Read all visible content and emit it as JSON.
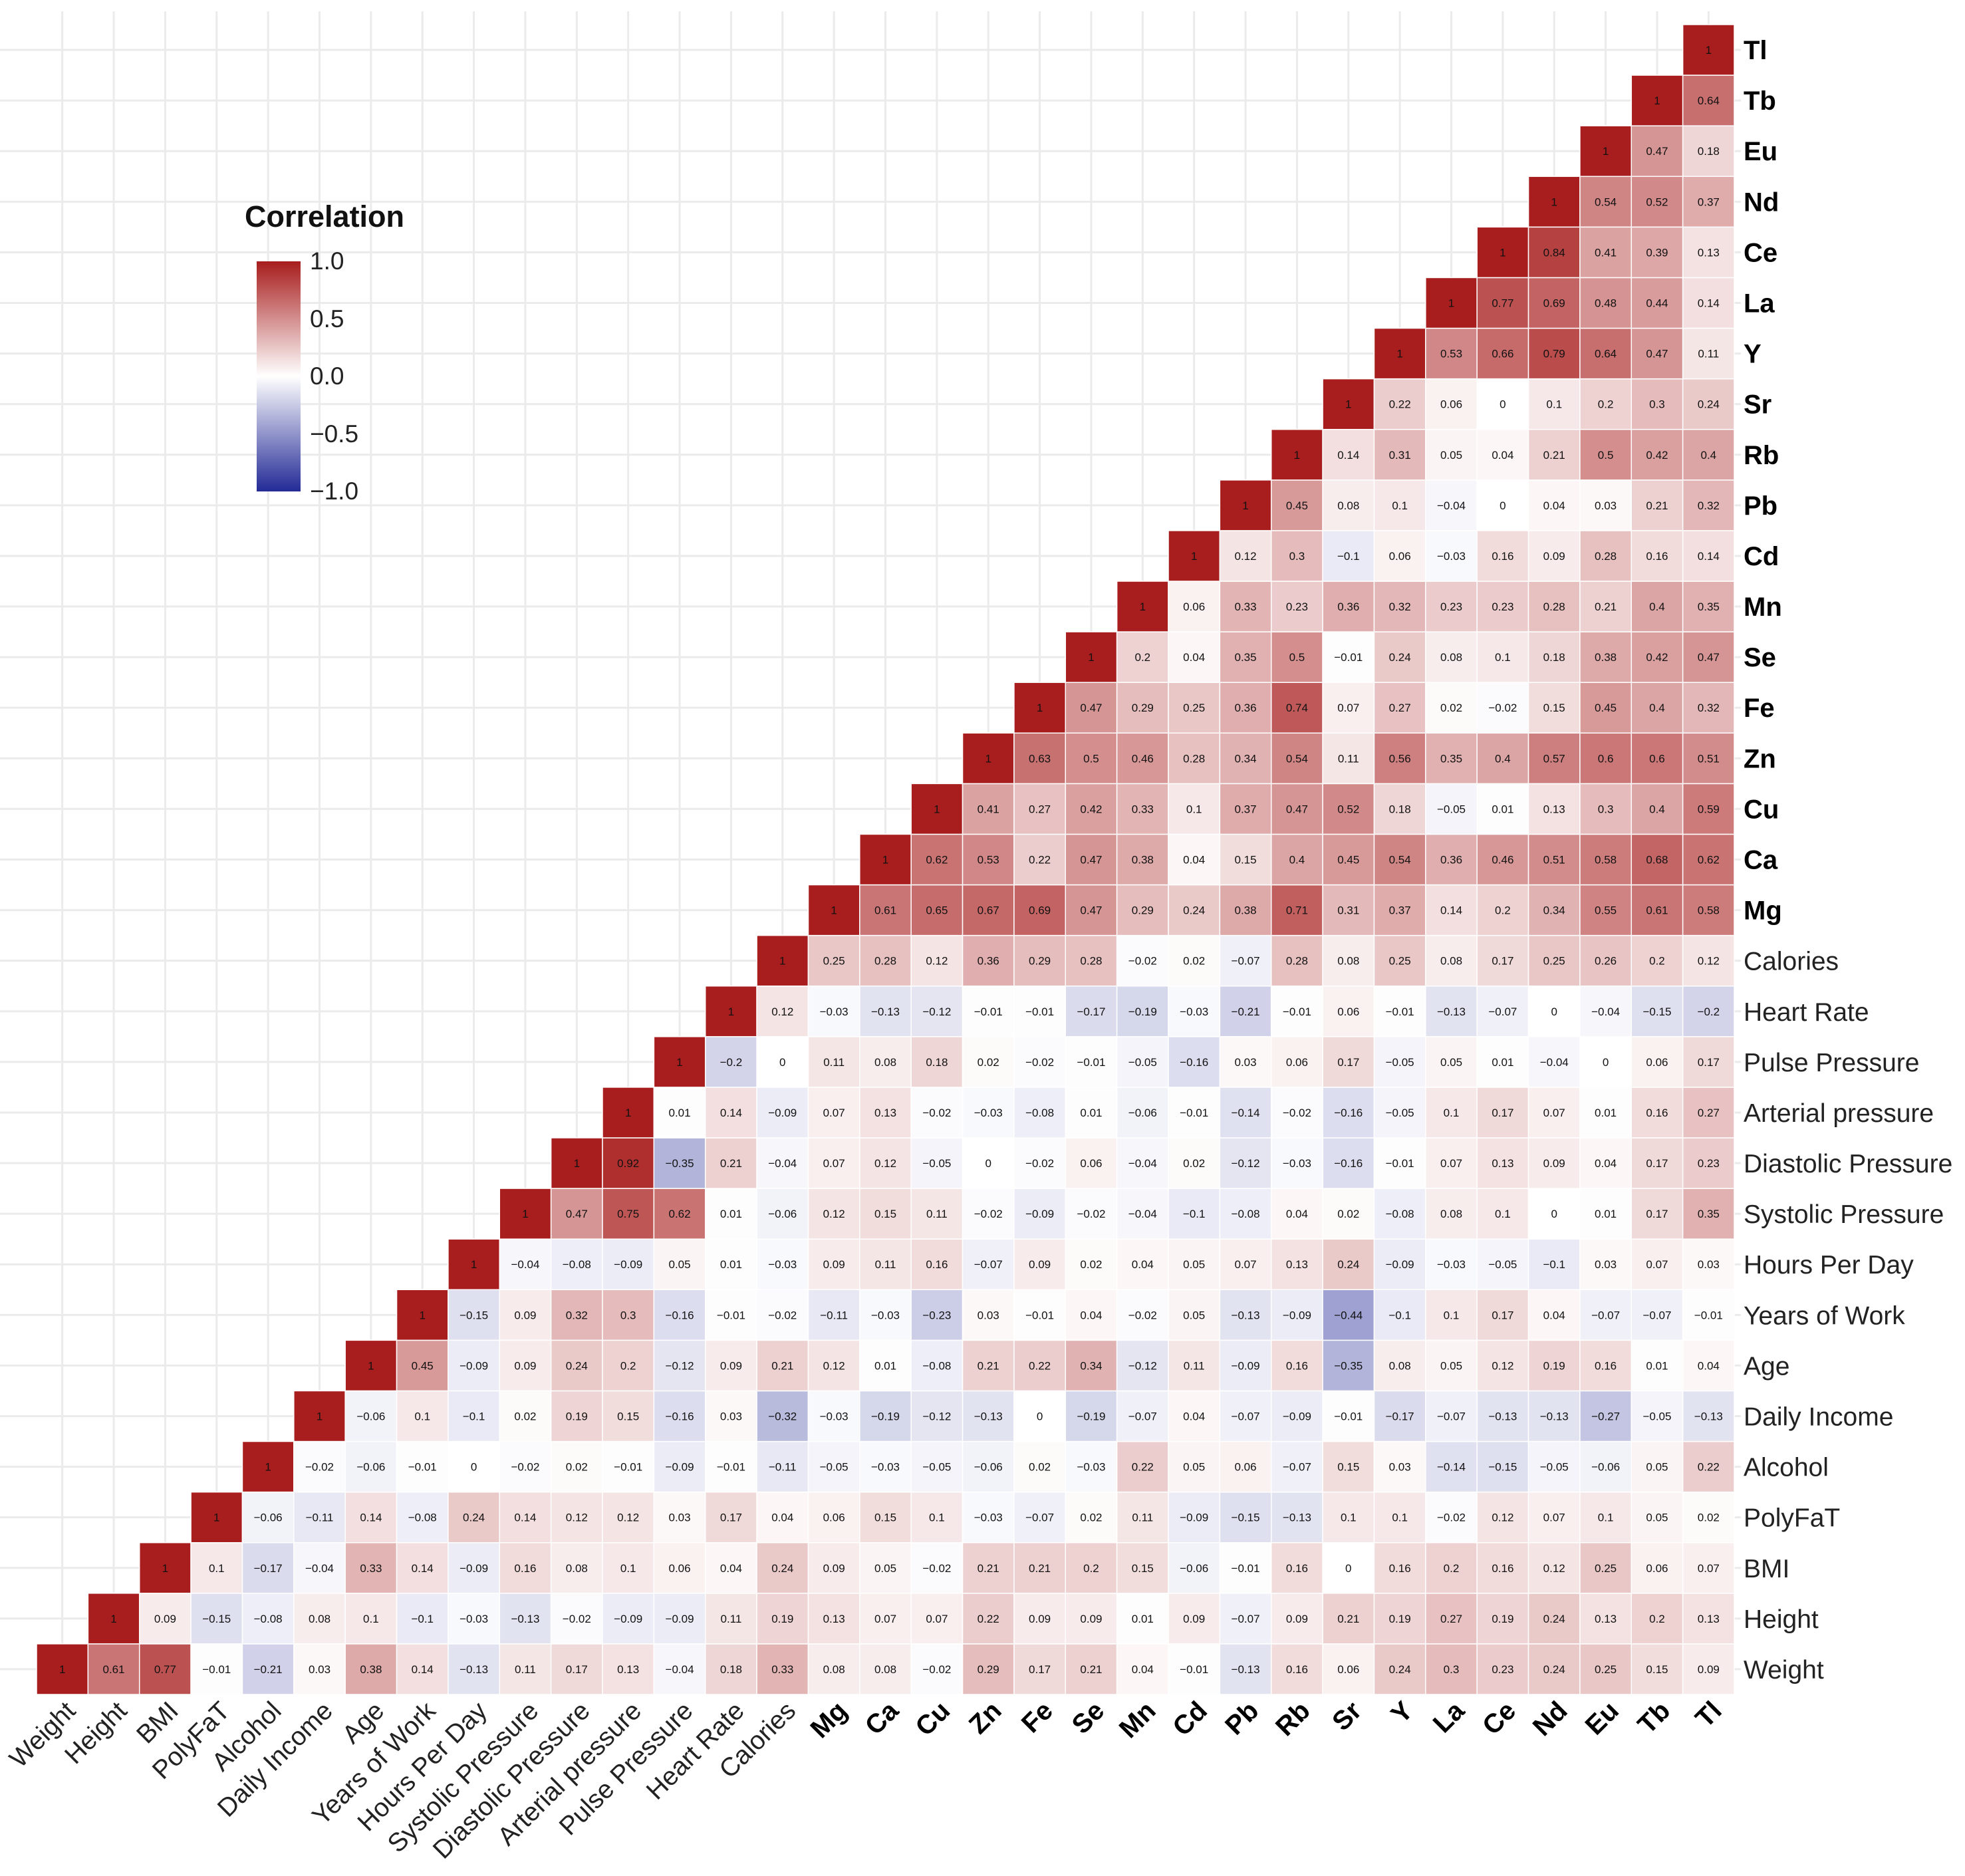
{
  "chart_data": {
    "type": "heatmap",
    "title": "",
    "layout": "upper-triangle correlation matrix",
    "variables": [
      "Weight",
      "Height",
      "BMI",
      "PolyFaT",
      "Alcohol",
      "Daily Income",
      "Age",
      "Years of Work",
      "Hours Per Day",
      "Systolic Pressure",
      "Diastolic Pressure",
      "Arterial pressure",
      "Pulse Pressure",
      "Heart Rate",
      "Calories",
      "Mg",
      "Ca",
      "Cu",
      "Zn",
      "Fe",
      "Se",
      "Mn",
      "Cd",
      "Pb",
      "Rb",
      "Sr",
      "Y",
      "La",
      "Ce",
      "Nd",
      "Eu",
      "Tb",
      "Tl"
    ],
    "bold_variables": [
      "Mg",
      "Ca",
      "Cu",
      "Zn",
      "Fe",
      "Se",
      "Mn",
      "Cd",
      "Pb",
      "Rb",
      "Sr",
      "Y",
      "La",
      "Ce",
      "Nd",
      "Eu",
      "Tb",
      "Tl"
    ],
    "cell_labels": [
      [
        "1",
        "0.61",
        "0.77",
        "-0.01",
        "-0.21",
        "0.03",
        "0.38",
        "0.14",
        "-0.13",
        "0.11",
        "0.17",
        "0.13",
        "-0.04",
        "0.18",
        "0.33",
        "0.08",
        "0.08",
        "-0.02",
        "0.29",
        "0.17",
        "0.21",
        "0.04",
        "-0.01",
        "-0.13",
        "0.16",
        "0.06",
        "0.24",
        "0.3",
        "0.23",
        "0.24",
        "0.25",
        "0.15",
        "0.09"
      ],
      [
        "1",
        "0.09",
        "-0.15",
        "-0.08",
        "0.08",
        "0.1",
        "-0.1",
        "-0.03",
        "-0.13",
        "-0.02",
        "-0.09",
        "-0.09",
        "0.11",
        "0.19",
        "0.13",
        "0.07",
        "0.07",
        "0.22",
        "0.09",
        "0.09",
        "0.01",
        "0.09",
        "-0.07",
        "0.09",
        "0.21",
        "0.19",
        "0.27",
        "0.19",
        "0.24",
        "0.13",
        "0.2",
        "0.13"
      ],
      [
        "1",
        "0.1",
        "-0.17",
        "-0.04",
        "0.33",
        "0.14",
        "-0.09",
        "0.16",
        "0.08",
        "0.1",
        "0.06",
        "0.04",
        "0.24",
        "0.09",
        "0.05",
        "-0.02",
        "0.21",
        "0.21",
        "0.2",
        "0.15",
        "-0.06",
        "-0.01",
        "0.16",
        "0",
        "0.16",
        "0.2",
        "0.16",
        "0.12",
        "0.25",
        "0.06",
        "0.07"
      ],
      [
        "1",
        "-0.06",
        "-0.11",
        "0.14",
        "-0.08",
        "0.24",
        "0.14",
        "0.12",
        "0.12",
        "0.03",
        "0.17",
        "0.04",
        "0.06",
        "0.15",
        "0.1",
        "-0.03",
        "-0.07",
        "0.02",
        "0.11",
        "-0.09",
        "-0.15",
        "-0.13",
        "0.1",
        "0.1",
        "-0.02",
        "0.12",
        "0.07",
        "0.1",
        "0.05",
        "0.02"
      ],
      [
        "1",
        "-0.02",
        "-0.06",
        "-0.01",
        "0",
        "-0.02",
        "0.02",
        "-0.01",
        "-0.09",
        "-0.01",
        "-0.11",
        "-0.05",
        "-0.03",
        "-0.05",
        "-0.06",
        "0.02",
        "-0.03",
        "0.22",
        "0.05",
        "0.06",
        "-0.07",
        "0.15",
        "0.03",
        "-0.14",
        "-0.15",
        "-0.05",
        "-0.06",
        "0.05",
        "0.22"
      ],
      [
        "1",
        "-0.06",
        "0.1",
        "-0.1",
        "0.02",
        "0.19",
        "0.15",
        "-0.16",
        "0.03",
        "-0.32",
        "-0.03",
        "-0.19",
        "-0.12",
        "-0.13",
        "0",
        "-0.19",
        "-0.07",
        "0.04",
        "-0.07",
        "-0.09",
        "-0.01",
        "-0.17",
        "-0.07",
        "-0.13",
        "-0.13",
        "-0.27",
        "-0.05",
        "-0.13"
      ],
      [
        "1",
        "0.45",
        "-0.09",
        "0.09",
        "0.24",
        "0.2",
        "-0.12",
        "0.09",
        "0.21",
        "0.12",
        "0.01",
        "-0.08",
        "0.21",
        "0.22",
        "0.34",
        "-0.12",
        "0.11",
        "-0.09",
        "0.16",
        "-0.35",
        "0.08",
        "0.05",
        "0.12",
        "0.19",
        "0.16",
        "0.01",
        "0.04"
      ],
      [
        "1",
        "-0.15",
        "0.09",
        "0.32",
        "0.3",
        "-0.16",
        "-0.01",
        "-0.02",
        "-0.11",
        "-0.03",
        "-0.23",
        "0.03",
        "-0.01",
        "0.04",
        "-0.02",
        "0.05",
        "-0.13",
        "-0.09",
        "-0.44",
        "-0.1",
        "0.1",
        "0.17",
        "0.04",
        "-0.07",
        "-0.07",
        "-0.01"
      ],
      [
        "1",
        "-0.04",
        "-0.08",
        "-0.09",
        "0.05",
        "0.01",
        "-0.03",
        "0.09",
        "0.11",
        "0.16",
        "-0.07",
        "0.09",
        "0.02",
        "0.04",
        "0.05",
        "0.07",
        "0.13",
        "0.24",
        "-0.09",
        "-0.03",
        "-0.05",
        "-0.1",
        "0.03",
        "0.07",
        "0.03"
      ],
      [
        "1",
        "0.47",
        "0.75",
        "0.62",
        "0.01",
        "-0.06",
        "0.12",
        "0.15",
        "0.11",
        "-0.02",
        "-0.09",
        "-0.02",
        "-0.04",
        "-0.1",
        "-0.08",
        "0.04",
        "0.02",
        "-0.08",
        "0.08",
        "0.1",
        "0",
        "0.01",
        "0.17",
        "0.35"
      ],
      [
        "1",
        "0.92",
        "-0.35",
        "0.21",
        "-0.04",
        "0.07",
        "0.12",
        "-0.05",
        "0",
        "-0.02",
        "0.06",
        "-0.04",
        "0.02",
        "-0.12",
        "-0.03",
        "-0.16",
        "-0.01",
        "0.07",
        "0.13",
        "0.09",
        "0.04",
        "0.17",
        "0.23"
      ],
      [
        "1",
        "0.01",
        "0.14",
        "-0.09",
        "0.07",
        "0.13",
        "-0.02",
        "-0.03",
        "-0.08",
        "0.01",
        "-0.06",
        "-0.01",
        "-0.14",
        "-0.02",
        "-0.16",
        "-0.05",
        "0.1",
        "0.17",
        "0.07",
        "0.01",
        "0.16",
        "0.27"
      ],
      [
        "1",
        "-0.2",
        "0",
        "0.11",
        "0.08",
        "0.18",
        "0.02",
        "-0.02",
        "-0.01",
        "-0.05",
        "-0.16",
        "0.03",
        "0.06",
        "0.17",
        "-0.05",
        "0.05",
        "0.01",
        "-0.04",
        "0",
        "0.06",
        "0.17"
      ],
      [
        "1",
        "0.12",
        "-0.03",
        "-0.13",
        "-0.12",
        "-0.01",
        "-0.01",
        "-0.17",
        "-0.19",
        "-0.03",
        "-0.21",
        "-0.01",
        "0.06",
        "-0.01",
        "-0.13",
        "-0.07",
        "0",
        "-0.04",
        "-0.15",
        "-0.2"
      ],
      [
        "1",
        "0.25",
        "0.28",
        "0.12",
        "0.36",
        "0.29",
        "0.28",
        "-0.02",
        "0.02",
        "-0.07",
        "0.28",
        "0.08",
        "0.25",
        "0.08",
        "0.17",
        "0.25",
        "0.26",
        "0.2",
        "0.12"
      ],
      [
        "1",
        "0.61",
        "0.65",
        "0.67",
        "0.69",
        "0.47",
        "0.29",
        "0.24",
        "0.38",
        "0.71",
        "0.31",
        "0.37",
        "0.14",
        "0.2",
        "0.34",
        "0.55",
        "0.61",
        "0.58"
      ],
      [
        "1",
        "0.62",
        "0.53",
        "0.22",
        "0.47",
        "0.38",
        "0.04",
        "0.15",
        "0.4",
        "0.45",
        "0.54",
        "0.36",
        "0.46",
        "0.51",
        "0.58",
        "0.68",
        "0.62"
      ],
      [
        "1",
        "0.41",
        "0.27",
        "0.42",
        "0.33",
        "0.1",
        "0.37",
        "0.47",
        "0.52",
        "0.18",
        "-0.05",
        "0.01",
        "0.13",
        "0.3",
        "0.4",
        "0.59"
      ],
      [
        "1",
        "0.63",
        "0.5",
        "0.46",
        "0.28",
        "0.34",
        "0.54",
        "0.11",
        "0.56",
        "0.35",
        "0.4",
        "0.57",
        "0.6",
        "0.6",
        "0.51"
      ],
      [
        "1",
        "0.47",
        "0.29",
        "0.25",
        "0.36",
        "0.74",
        "0.07",
        "0.27",
        "0.02",
        "-0.02",
        "0.15",
        "0.45",
        "0.4",
        "0.32"
      ],
      [
        "1",
        "0.2",
        "0.04",
        "0.35",
        "0.5",
        "-0.01",
        "0.24",
        "0.08",
        "0.1",
        "0.18",
        "0.38",
        "0.42",
        "0.47"
      ],
      [
        "1",
        "0.06",
        "0.33",
        "0.23",
        "0.36",
        "0.32",
        "0.23",
        "0.23",
        "0.28",
        "0.21",
        "0.4",
        "0.35"
      ],
      [
        "1",
        "0.12",
        "0.3",
        "-0.1",
        "0.06",
        "-0.03",
        "0.16",
        "0.09",
        "0.28",
        "0.16",
        "0.14"
      ],
      [
        "1",
        "0.45",
        "0.08",
        "0.1",
        "-0.04",
        "0",
        "0.04",
        "0.03",
        "0.21",
        "0.32"
      ],
      [
        "1",
        "0.14",
        "0.31",
        "0.05",
        "0.04",
        "0.21",
        "0.5",
        "0.42",
        "0.4"
      ],
      [
        "1",
        "0.22",
        "0.06",
        "0",
        "0.1",
        "0.2",
        "0.3",
        "0.24"
      ],
      [
        "1",
        "0.53",
        "0.66",
        "0.79",
        "0.64",
        "0.47",
        "0.11"
      ],
      [
        "1",
        "0.77",
        "0.69",
        "0.48",
        "0.44",
        "0.14"
      ],
      [
        "1",
        "0.84",
        "0.41",
        "0.39",
        "0.13"
      ],
      [
        "1",
        "0.54",
        "0.52",
        "0.37"
      ],
      [
        "1",
        "0.47",
        "0.18"
      ],
      [
        "1",
        "0.64"
      ],
      [
        "1"
      ]
    ],
    "color_scale": {
      "low": "#232a96",
      "mid": "#ffffff",
      "high": "#a81d1d",
      "limits": [
        -1.0,
        1.0
      ]
    },
    "grid": true
  },
  "legend": {
    "title": "Correlation",
    "placement": "top-left",
    "ticks": [
      {
        "value": 1.0,
        "label": "1.0"
      },
      {
        "value": 0.5,
        "label": "0.5"
      },
      {
        "value": 0.0,
        "label": "0.0"
      },
      {
        "value": -0.5,
        "label": "−0.5"
      },
      {
        "value": -1.0,
        "label": "−1.0"
      }
    ]
  }
}
